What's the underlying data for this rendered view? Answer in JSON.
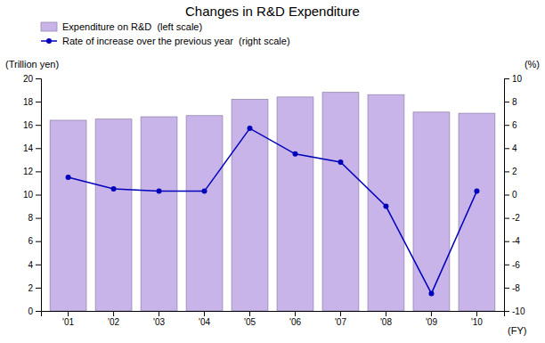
{
  "chart_data": {
    "type": "bar",
    "title": "Changes in R&D Expenditure",
    "categories": [
      "'01",
      "'02",
      "'03",
      "'04",
      "'05",
      "'06",
      "'07",
      "'08",
      "'09",
      "'10"
    ],
    "series": [
      {
        "name": "Expenditure on R&D  (left scale)",
        "type": "bar",
        "color": "#c8b4e8",
        "values": [
          16.4,
          16.5,
          16.7,
          16.8,
          18.2,
          18.4,
          18.8,
          18.6,
          17.1,
          17.0
        ]
      },
      {
        "name": "Rate of increase over the previous year  (right scale)",
        "type": "line",
        "color": "#0000bb",
        "marker": "circle",
        "axis": "y2",
        "values": [
          1.5,
          0.5,
          0.3,
          0.3,
          5.7,
          3.5,
          2.8,
          -1.0,
          -8.5,
          0.3
        ]
      }
    ],
    "xlabel": "(FY)",
    "ylabel": "(Trillion yen)",
    "y2label": "(%)",
    "ylim": [
      0,
      20
    ],
    "yticks": [
      0,
      2,
      4,
      6,
      8,
      10,
      12,
      14,
      16,
      18,
      20
    ],
    "y2lim": [
      -10,
      10
    ],
    "y2ticks": [
      -10,
      -8,
      -6,
      -4,
      -2,
      0,
      2,
      4,
      6,
      8,
      10
    ],
    "grid": false,
    "legend": "upper left"
  }
}
